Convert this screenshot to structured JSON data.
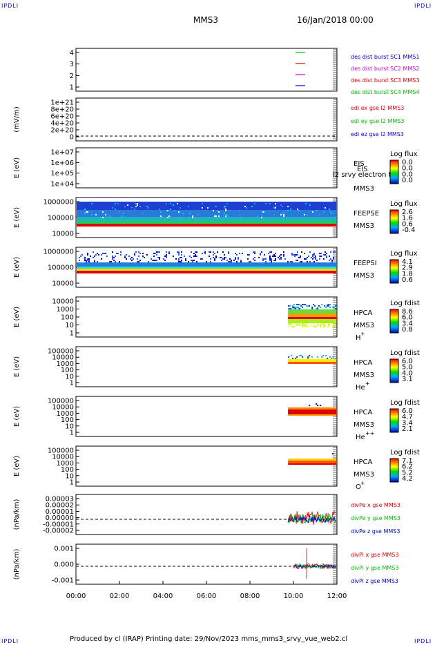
{
  "corners": {
    "tl": "IPDLI",
    "tr": "IPDLI",
    "bl": "IPDLI",
    "br": "IPDLI"
  },
  "header": {
    "mission": "MMS3",
    "date": "16/Jan/2018 00:00"
  },
  "footer": {
    "text": "Produced by cl (IRAP)   Printing date: 29/Nov/2023   mms_mms3_srvy_vue_web2.cl"
  },
  "colors": {
    "blue": "#0000cc",
    "red": "#dd0000",
    "green": "#00bb00",
    "magenta": "#cc00cc"
  },
  "chart_data": [
    {
      "type": "line",
      "id": "p1",
      "ylabel": "",
      "ylim": [
        0.5,
        4.5
      ],
      "yticks": [
        "4",
        "3",
        "2",
        "1"
      ],
      "legend": [
        {
          "name": "des dist burst SC1 MMS1",
          "color": "#0000cc",
          "y": 4
        },
        {
          "name": "des dist burst SC2 MMS2",
          "color": "#cc00cc",
          "y": 3
        },
        {
          "name": "des dist burst SC3 MMS3",
          "color": "#dd0000",
          "y": 2
        },
        {
          "name": "des dist burst SC4 MMS4",
          "color": "#00bb00",
          "y": 1
        }
      ]
    },
    {
      "type": "line",
      "id": "p2",
      "ylabel": "(mV/m)",
      "yticks": [
        "1e+21",
        "8e+20",
        "6e+20",
        "4e+20",
        "2e+20",
        "0"
      ],
      "series": [
        {
          "name": "edi ex gse l2 MMS3",
          "color": "#dd0000"
        },
        {
          "name": "edi ey gse l2 MMS3",
          "color": "#00bb00"
        },
        {
          "name": "edi ez gse l2 MMS3",
          "color": "#0000cc"
        }
      ]
    },
    {
      "type": "heatmap",
      "id": "p3",
      "ylabel": "E (eV)",
      "yticks": [
        "1e+07",
        "1e+06",
        "1e+05",
        "1e+04"
      ],
      "instrument": "EIS",
      "sc": "MMS3",
      "overlay": "l2 srvy electron to",
      "colorbar": {
        "title": "Log flux",
        "values": [
          "0.0",
          "0.0",
          "0.0",
          "0.0"
        ]
      }
    },
    {
      "type": "heatmap",
      "id": "p4",
      "ylabel": "E (eV)",
      "yticks": [
        "1000000",
        "100000",
        "10000"
      ],
      "instrument": "FEEPSE",
      "sc": "MMS3",
      "colorbar": {
        "title": "Log flux",
        "values": [
          "2.6",
          "1.6",
          "0.6",
          "-0.4"
        ]
      }
    },
    {
      "type": "heatmap",
      "id": "p5",
      "ylabel": "E (eV)",
      "yticks": [
        "1000000",
        "100000",
        "10000"
      ],
      "instrument": "FEEPSI",
      "sc": "MMS3",
      "colorbar": {
        "title": "Log flux",
        "values": [
          "4.1",
          "2.9",
          "1.8",
          "0.6"
        ]
      }
    },
    {
      "type": "heatmap",
      "id": "p6",
      "ylabel": "E (eV)",
      "yticks": [
        "10000",
        "1000",
        "100",
        "10",
        "1"
      ],
      "instrument": "HPCA",
      "sc": "MMS3",
      "species": "H",
      "charge": "+",
      "colorbar": {
        "title": "Log fdist",
        "values": [
          "8.6",
          "6.0",
          "3.4",
          "0.8"
        ]
      }
    },
    {
      "type": "heatmap",
      "id": "p7",
      "ylabel": "E (eV)",
      "yticks": [
        "100000",
        "10000",
        "1000",
        "100",
        "10",
        "1"
      ],
      "instrument": "HPCA",
      "sc": "MMS3",
      "species": "He",
      "charge": "+",
      "colorbar": {
        "title": "Log fdist",
        "values": [
          "6.0",
          "5.0",
          "4.0",
          "3.1"
        ]
      }
    },
    {
      "type": "heatmap",
      "id": "p8",
      "ylabel": "E (eV)",
      "yticks": [
        "100000",
        "10000",
        "1000",
        "100",
        "10",
        "1"
      ],
      "instrument": "HPCA",
      "sc": "MMS3",
      "species": "He",
      "charge": "++",
      "colorbar": {
        "title": "Log fdist",
        "values": [
          "6.0",
          "4.7",
          "3.4",
          "2.1"
        ]
      }
    },
    {
      "type": "heatmap",
      "id": "p9",
      "ylabel": "E (eV)",
      "yticks": [
        "100000",
        "10000",
        "1000",
        "100",
        "10",
        "1"
      ],
      "instrument": "HPCA",
      "sc": "MMS3",
      "species": "O",
      "charge": "+",
      "colorbar": {
        "title": "Log fdist",
        "values": [
          "7.1",
          "6.2",
          "5.2",
          "4.2"
        ]
      }
    },
    {
      "type": "line",
      "id": "p10",
      "ylabel": "(nPa/km)",
      "yticks": [
        "0.00003",
        "0.00002",
        "0.00001",
        "0.00000",
        "-0.00001",
        "-0.00002"
      ],
      "series": [
        {
          "name": "divPe x gse MMS3",
          "color": "#dd0000"
        },
        {
          "name": "divPe y gse MMS3",
          "color": "#00bb00"
        },
        {
          "name": "divPe z gse MMS3",
          "color": "#0000cc"
        }
      ]
    },
    {
      "type": "line",
      "id": "p11",
      "ylabel": "(nPa/km)",
      "yticks": [
        "0.001",
        "0.000",
        "-0.001"
      ],
      "series": [
        {
          "name": "divPi x gse MMS3",
          "color": "#dd0000"
        },
        {
          "name": "divPi y gse MMS3",
          "color": "#00bb00"
        },
        {
          "name": "divPi z gse MMS3",
          "color": "#0000cc"
        }
      ]
    }
  ],
  "xaxis": {
    "ticks": [
      "00:00",
      "02:00",
      "04:00",
      "06:00",
      "08:00",
      "10:00",
      "12:00"
    ],
    "xlim_hours": [
      0,
      12
    ]
  }
}
